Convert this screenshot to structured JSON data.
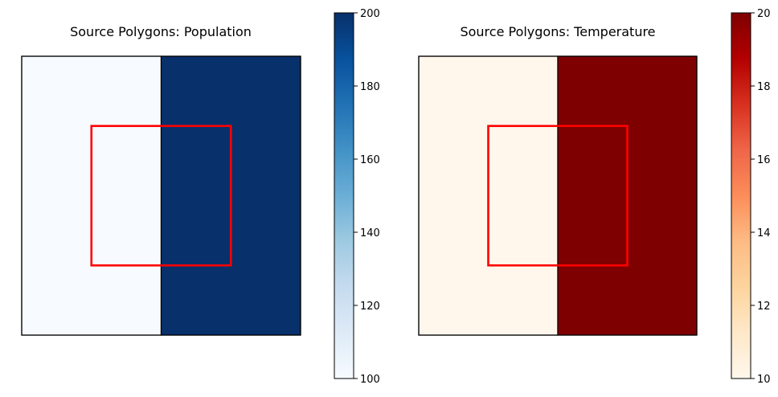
{
  "chart_data": [
    {
      "type": "heatmap",
      "title": "Source Polygons: Population",
      "colormap": "Blues",
      "color_low": "#f7fbff",
      "color_high": "#08306b",
      "xlim": [
        0,
        2
      ],
      "ylim": [
        0,
        2
      ],
      "axis_visible": false,
      "polygons": [
        {
          "x": [
            0,
            1
          ],
          "y": [
            0,
            2
          ],
          "value": 100
        },
        {
          "x": [
            1,
            2
          ],
          "y": [
            0,
            2
          ],
          "value": 200
        }
      ],
      "target_polygon": {
        "x": [
          0.5,
          1.5
        ],
        "y": [
          0.5,
          1.5
        ],
        "color": "#ff0000"
      },
      "colorbar": {
        "vmin": 100,
        "vmax": 200,
        "ticks": [
          100,
          120,
          140,
          160,
          180,
          200
        ],
        "tick_labels": [
          "100",
          "120",
          "140",
          "160",
          "180",
          "200"
        ]
      }
    },
    {
      "type": "heatmap",
      "title": "Source Polygons: Temperature",
      "colormap": "OrRd",
      "color_low": "#fff7ec",
      "color_high": "#7f0000",
      "xlim": [
        0,
        2
      ],
      "ylim": [
        0,
        2
      ],
      "axis_visible": false,
      "polygons": [
        {
          "x": [
            0,
            1
          ],
          "y": [
            0,
            2
          ],
          "value": 10
        },
        {
          "x": [
            1,
            2
          ],
          "y": [
            0,
            2
          ],
          "value": 20
        }
      ],
      "target_polygon": {
        "x": [
          0.5,
          1.5
        ],
        "y": [
          0.5,
          1.5
        ],
        "color": "#ff0000"
      },
      "colorbar": {
        "vmin": 10,
        "vmax": 20,
        "ticks": [
          10,
          12,
          14,
          16,
          18,
          20
        ],
        "tick_labels": [
          "10",
          "12",
          "14",
          "16",
          "18",
          "20"
        ]
      }
    }
  ]
}
